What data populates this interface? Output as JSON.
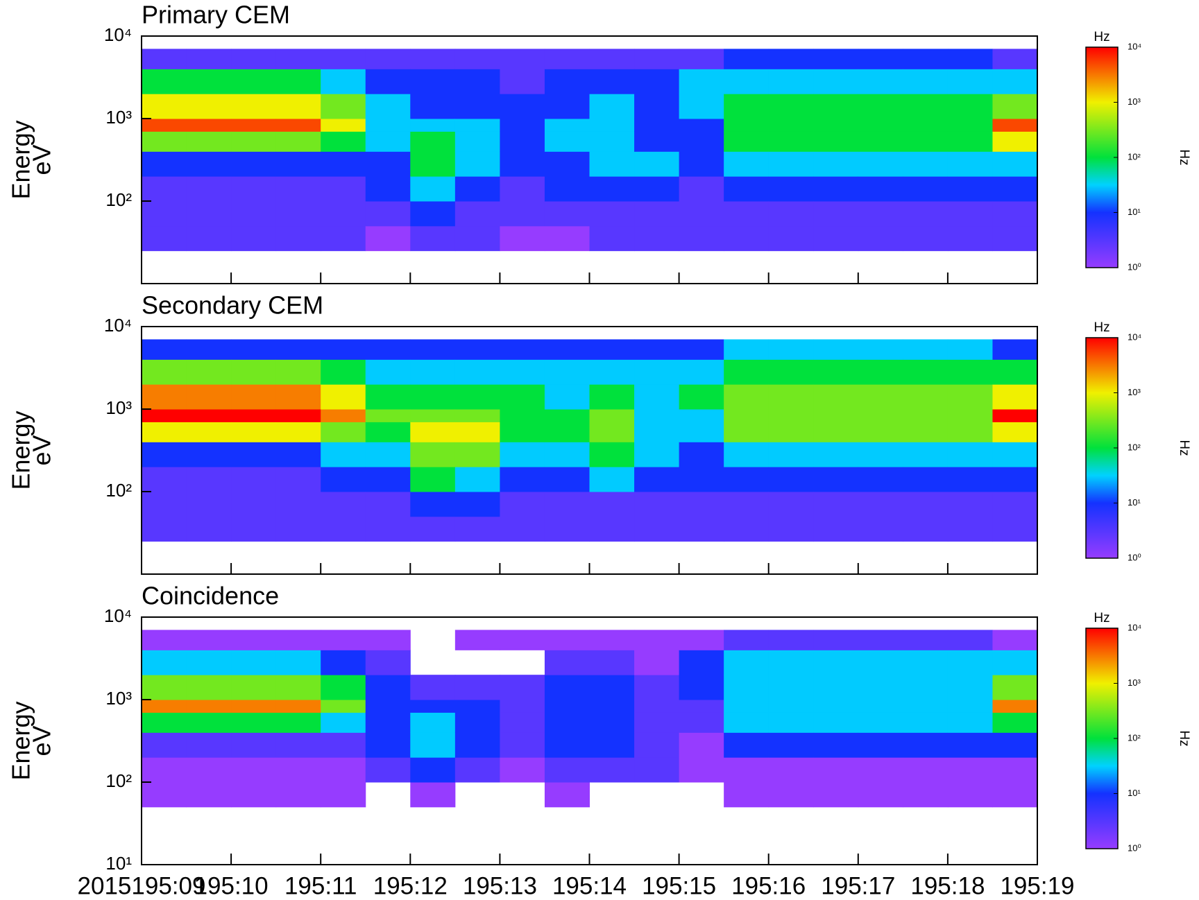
{
  "chart_data": [
    {
      "type": "heatmap",
      "title": "Primary CEM",
      "ylabel": [
        "Energy",
        "eV"
      ],
      "ylog": true,
      "ylim": [
        10,
        10000
      ],
      "yticks": [
        {
          "value": 100,
          "label": "10²"
        },
        {
          "value": 1000,
          "label": "10³"
        },
        {
          "value": 10000,
          "label": "10⁴"
        }
      ],
      "xlim": [
        9,
        19
      ],
      "xticks": [
        9,
        10,
        11,
        12,
        13,
        14,
        15,
        16,
        17,
        18,
        19
      ],
      "x_edges": [
        9,
        9.5,
        10,
        10.5,
        11,
        11.5,
        12,
        12.5,
        13,
        13.5,
        14,
        14.5,
        15,
        15.5,
        16,
        16.5,
        17,
        17.5,
        18,
        18.5,
        19
      ],
      "y_edges": [
        25,
        50,
        100,
        200,
        400,
        700,
        1000,
        2000,
        4000,
        7000
      ],
      "z": [
        [
          3,
          3,
          3,
          10,
          300,
          5000,
          1000,
          100,
          3
        ],
        [
          3,
          3,
          3,
          10,
          300,
          5000,
          1000,
          100,
          3
        ],
        [
          3,
          3,
          3,
          10,
          300,
          5000,
          1000,
          100,
          3
        ],
        [
          3,
          3,
          3,
          10,
          300,
          5000,
          1000,
          100,
          3
        ],
        [
          3,
          3,
          3,
          10,
          100,
          1000,
          300,
          30,
          3
        ],
        [
          1,
          3,
          10,
          10,
          30,
          30,
          30,
          10,
          3
        ],
        [
          3,
          10,
          30,
          100,
          100,
          30,
          10,
          10,
          3
        ],
        [
          3,
          3,
          10,
          30,
          30,
          30,
          10,
          10,
          3
        ],
        [
          1,
          3,
          3,
          10,
          10,
          10,
          10,
          3,
          3
        ],
        [
          1,
          3,
          10,
          10,
          30,
          30,
          10,
          10,
          3
        ],
        [
          3,
          3,
          10,
          30,
          30,
          30,
          30,
          10,
          3
        ],
        [
          3,
          3,
          10,
          30,
          10,
          10,
          10,
          10,
          3
        ],
        [
          3,
          3,
          3,
          10,
          10,
          10,
          30,
          30,
          3
        ],
        [
          3,
          3,
          10,
          30,
          100,
          100,
          100,
          30,
          10
        ],
        [
          3,
          3,
          10,
          30,
          100,
          100,
          100,
          30,
          10
        ],
        [
          3,
          3,
          10,
          30,
          100,
          100,
          100,
          30,
          10
        ],
        [
          3,
          3,
          10,
          30,
          100,
          100,
          100,
          30,
          10
        ],
        [
          3,
          3,
          10,
          30,
          100,
          100,
          100,
          30,
          10
        ],
        [
          3,
          3,
          10,
          30,
          100,
          100,
          100,
          30,
          10
        ],
        [
          3,
          3,
          10,
          30,
          1000,
          5000,
          300,
          30,
          3
        ]
      ],
      "colormap": "rainbow",
      "zlog": true,
      "zlim": [
        1,
        10000
      ],
      "zticks": [
        {
          "value": 1,
          "label": "10⁰"
        },
        {
          "value": 10,
          "label": "10¹"
        },
        {
          "value": 100,
          "label": "10²"
        },
        {
          "value": 1000,
          "label": "10³"
        },
        {
          "value": 10000,
          "label": "10⁴"
        }
      ],
      "colorbar_title": "Hz",
      "colorbar_label": "Hz"
    },
    {
      "type": "heatmap",
      "title": "Secondary CEM",
      "ylabel": [
        "Energy",
        "eV"
      ],
      "ylog": true,
      "ylim": [
        10,
        10000
      ],
      "yticks": [
        {
          "value": 100,
          "label": "10²"
        },
        {
          "value": 1000,
          "label": "10³"
        },
        {
          "value": 10000,
          "label": "10⁴"
        }
      ],
      "xlim": [
        9,
        19
      ],
      "xticks": [
        9,
        10,
        11,
        12,
        13,
        14,
        15,
        16,
        17,
        18,
        19
      ],
      "x_edges": [
        9,
        9.5,
        10,
        10.5,
        11,
        11.5,
        12,
        12.5,
        13,
        13.5,
        14,
        14.5,
        15,
        15.5,
        16,
        16.5,
        17,
        17.5,
        18,
        18.5,
        19
      ],
      "y_edges": [
        25,
        50,
        100,
        200,
        400,
        700,
        1000,
        2000,
        4000,
        7000
      ],
      "z": [
        [
          3,
          3,
          3,
          10,
          1000,
          10000,
          3000,
          300,
          10
        ],
        [
          3,
          3,
          3,
          10,
          1000,
          10000,
          3000,
          300,
          10
        ],
        [
          3,
          3,
          3,
          10,
          1000,
          10000,
          3000,
          300,
          10
        ],
        [
          3,
          3,
          3,
          10,
          1000,
          10000,
          3000,
          300,
          10
        ],
        [
          3,
          3,
          10,
          30,
          300,
          3000,
          1000,
          100,
          10
        ],
        [
          3,
          3,
          10,
          30,
          100,
          300,
          100,
          30,
          10
        ],
        [
          3,
          10,
          100,
          300,
          1000,
          300,
          100,
          30,
          10
        ],
        [
          3,
          10,
          30,
          300,
          1000,
          300,
          100,
          30,
          10
        ],
        [
          3,
          3,
          10,
          30,
          100,
          100,
          100,
          30,
          10
        ],
        [
          3,
          3,
          10,
          30,
          100,
          100,
          30,
          30,
          10
        ],
        [
          3,
          3,
          30,
          100,
          300,
          300,
          100,
          30,
          10
        ],
        [
          3,
          3,
          10,
          30,
          30,
          30,
          30,
          30,
          10
        ],
        [
          3,
          3,
          10,
          10,
          30,
          30,
          100,
          30,
          10
        ],
        [
          3,
          3,
          10,
          30,
          300,
          300,
          300,
          100,
          30
        ],
        [
          3,
          3,
          10,
          30,
          300,
          300,
          300,
          100,
          30
        ],
        [
          3,
          3,
          10,
          30,
          300,
          300,
          300,
          100,
          30
        ],
        [
          3,
          3,
          10,
          30,
          300,
          300,
          300,
          100,
          30
        ],
        [
          3,
          3,
          10,
          30,
          300,
          300,
          300,
          100,
          30
        ],
        [
          3,
          3,
          10,
          30,
          300,
          300,
          300,
          100,
          30
        ],
        [
          3,
          3,
          10,
          30,
          1000,
          10000,
          1000,
          100,
          10
        ]
      ],
      "colormap": "rainbow",
      "zlog": true,
      "zlim": [
        1,
        10000
      ],
      "zticks": [
        {
          "value": 1,
          "label": "10⁰"
        },
        {
          "value": 10,
          "label": "10¹"
        },
        {
          "value": 100,
          "label": "10²"
        },
        {
          "value": 1000,
          "label": "10³"
        },
        {
          "value": 10000,
          "label": "10⁴"
        }
      ],
      "colorbar_title": "Hz",
      "colorbar_label": "Hz"
    },
    {
      "type": "heatmap",
      "title": "Coincidence",
      "ylabel": [
        "Energy",
        "eV"
      ],
      "ylog": true,
      "ylim": [
        10,
        10000
      ],
      "yticks": [
        {
          "value": 10,
          "label": "10¹"
        },
        {
          "value": 100,
          "label": "10²"
        },
        {
          "value": 1000,
          "label": "10³"
        },
        {
          "value": 10000,
          "label": "10⁴"
        }
      ],
      "xlim": [
        9,
        19
      ],
      "xticks": [
        {
          "value": 9,
          "label": "2015195:09"
        },
        {
          "value": 10,
          "label": "195:10"
        },
        {
          "value": 11,
          "label": "195:11"
        },
        {
          "value": 12,
          "label": "195:12"
        },
        {
          "value": 13,
          "label": "195:13"
        },
        {
          "value": 14,
          "label": "195:14"
        },
        {
          "value": 15,
          "label": "195:15"
        },
        {
          "value": 16,
          "label": "195:16"
        },
        {
          "value": 17,
          "label": "195:17"
        },
        {
          "value": 18,
          "label": "195:18"
        },
        {
          "value": 19,
          "label": "195:19"
        }
      ],
      "x_edges": [
        9,
        9.5,
        10,
        10.5,
        11,
        11.5,
        12,
        12.5,
        13,
        13.5,
        14,
        14.5,
        15,
        15.5,
        16,
        16.5,
        17,
        17.5,
        18,
        18.5,
        19
      ],
      "y_edges": [
        25,
        50,
        100,
        200,
        400,
        700,
        1000,
        2000,
        4000,
        7000
      ],
      "z": [
        [
          null,
          1,
          1,
          3,
          100,
          3000,
          300,
          30,
          1
        ],
        [
          null,
          1,
          1,
          3,
          100,
          3000,
          300,
          30,
          1
        ],
        [
          null,
          1,
          1,
          3,
          100,
          3000,
          300,
          30,
          1
        ],
        [
          null,
          1,
          1,
          3,
          100,
          3000,
          300,
          30,
          1
        ],
        [
          null,
          1,
          1,
          3,
          30,
          300,
          100,
          10,
          1
        ],
        [
          null,
          null,
          3,
          10,
          10,
          10,
          10,
          3,
          1
        ],
        [
          null,
          1,
          10,
          30,
          30,
          10,
          3,
          null,
          null
        ],
        [
          null,
          null,
          3,
          10,
          10,
          10,
          3,
          null,
          1
        ],
        [
          null,
          null,
          1,
          3,
          3,
          3,
          3,
          null,
          1
        ],
        [
          null,
          1,
          3,
          10,
          10,
          10,
          10,
          3,
          1
        ],
        [
          null,
          null,
          3,
          10,
          10,
          10,
          10,
          3,
          1
        ],
        [
          null,
          null,
          3,
          3,
          3,
          3,
          3,
          1,
          1
        ],
        [
          null,
          null,
          1,
          1,
          3,
          3,
          10,
          10,
          1
        ],
        [
          null,
          1,
          1,
          10,
          30,
          30,
          30,
          30,
          3
        ],
        [
          null,
          1,
          1,
          10,
          30,
          30,
          30,
          30,
          3
        ],
        [
          null,
          1,
          1,
          10,
          30,
          30,
          30,
          30,
          3
        ],
        [
          null,
          1,
          1,
          10,
          30,
          30,
          30,
          30,
          3
        ],
        [
          null,
          1,
          1,
          10,
          30,
          30,
          30,
          30,
          3
        ],
        [
          null,
          1,
          1,
          10,
          30,
          30,
          30,
          30,
          3
        ],
        [
          null,
          1,
          1,
          10,
          100,
          3000,
          300,
          30,
          1
        ]
      ],
      "colormap": "rainbow",
      "zlog": true,
      "zlim": [
        1,
        10000
      ],
      "zticks": [
        {
          "value": 1,
          "label": "10⁰"
        },
        {
          "value": 10,
          "label": "10¹"
        },
        {
          "value": 100,
          "label": "10²"
        },
        {
          "value": 1000,
          "label": "10³"
        },
        {
          "value": 10000,
          "label": "10⁴"
        }
      ],
      "colorbar_title": "Hz",
      "colorbar_label": "Hz"
    }
  ]
}
